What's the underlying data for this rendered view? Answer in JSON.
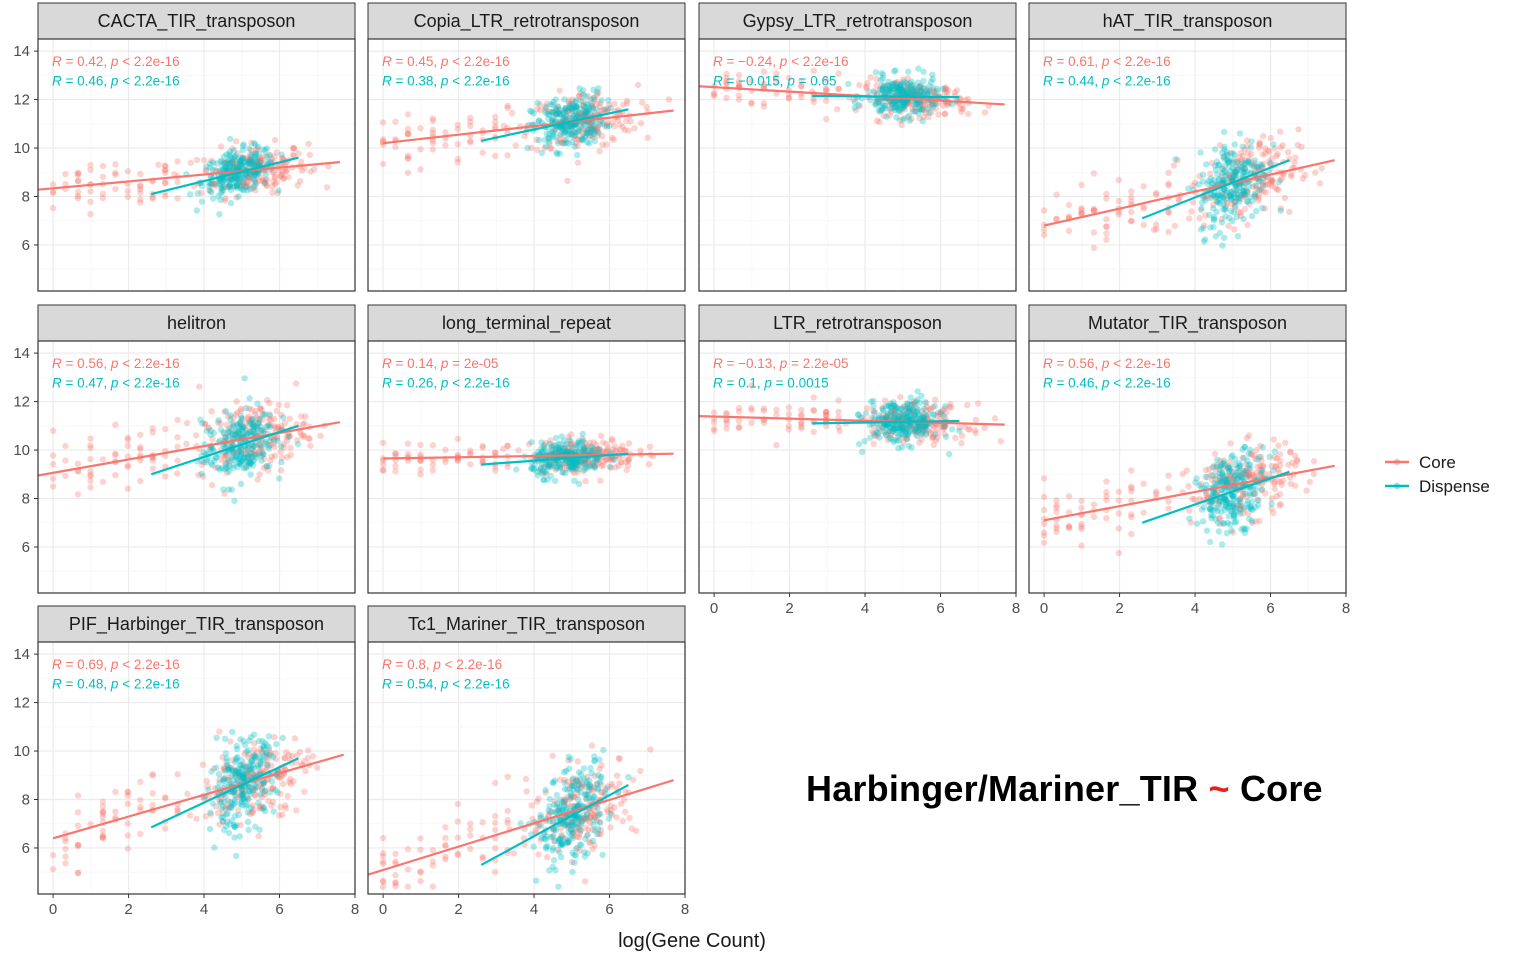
{
  "chart_data": {
    "type": "scatter",
    "xlabel": "log(Gene Count)",
    "ylabel": "",
    "xlim": [
      -0.4,
      8
    ],
    "ylim": [
      4.1,
      14.5
    ],
    "x_ticks": [
      0,
      2,
      4,
      6,
      8
    ],
    "y_ticks": [
      6,
      8,
      10,
      12,
      14
    ],
    "grid": true,
    "legend_position": "right",
    "legend": [
      {
        "name": "Core",
        "color": "#F8766D"
      },
      {
        "name": "Dispense",
        "color": "#00BFC4"
      }
    ],
    "facets": [
      {
        "title": "CACTA_TIR_transposon",
        "series": [
          {
            "name": "Core",
            "R": "0.42",
            "p": "< 2.2e-16",
            "x_range": [
              -0.4,
              7.6
            ],
            "line": [
              [
                -0.4,
                8.28
              ],
              [
                7.6,
                9.42
              ]
            ],
            "center": [
              5.3,
              9.0
            ],
            "spread": [
              1.2,
              0.5
            ]
          },
          {
            "name": "Dispense",
            "R": "0.46",
            "p": "< 2.2e-16",
            "x_range": [
              2.6,
              6.5
            ],
            "line": [
              [
                2.6,
                8.1
              ],
              [
                6.5,
                9.6
              ]
            ],
            "center": [
              4.9,
              8.85
            ],
            "spread": [
              0.8,
              0.45
            ]
          }
        ]
      },
      {
        "title": "Copia_LTR_retrotransposon",
        "series": [
          {
            "name": "Core",
            "R": "0.45",
            "p": "< 2.2e-16",
            "x_range": [
              0,
              7.7
            ],
            "line": [
              [
                0,
                10.2
              ],
              [
                7.7,
                11.55
              ]
            ],
            "center": [
              5.3,
              11.1
            ],
            "spread": [
              1.2,
              0.6
            ]
          },
          {
            "name": "Dispense",
            "R": "0.38",
            "p": "< 2.2e-16",
            "x_range": [
              2.6,
              6.5
            ],
            "line": [
              [
                2.6,
                10.3
              ],
              [
                6.5,
                11.6
              ]
            ],
            "center": [
              4.9,
              10.9
            ],
            "spread": [
              0.8,
              0.55
            ]
          }
        ]
      },
      {
        "title": "Gypsy_LTR_retrotransposon",
        "series": [
          {
            "name": "Core",
            "R": "−0.24",
            "p": "< 2.2e-16",
            "x_range": [
              -0.4,
              7.7
            ],
            "line": [
              [
                -0.4,
                12.55
              ],
              [
                7.7,
                11.8
              ]
            ],
            "center": [
              5.3,
              12.1
            ],
            "spread": [
              1.2,
              0.35
            ]
          },
          {
            "name": "Dispense",
            "R": "−0.015",
            "p": "= 0.65",
            "x_range": [
              2.6,
              6.5
            ],
            "line": [
              [
                2.6,
                12.15
              ],
              [
                6.5,
                12.1
              ]
            ],
            "center": [
              5.0,
              12.1
            ],
            "spread": [
              0.8,
              0.4
            ]
          }
        ]
      },
      {
        "title": "hAT_TIR_transposon",
        "series": [
          {
            "name": "Core",
            "R": "0.61",
            "p": "< 2.2e-16",
            "x_range": [
              0,
              7.7
            ],
            "line": [
              [
                0,
                6.8
              ],
              [
                7.7,
                9.5
              ]
            ],
            "center": [
              5.3,
              8.6
            ],
            "spread": [
              1.2,
              0.8
            ]
          },
          {
            "name": "Dispense",
            "R": "0.44",
            "p": "< 2.2e-16",
            "x_range": [
              2.6,
              6.5
            ],
            "line": [
              [
                2.6,
                7.1
              ],
              [
                6.5,
                9.5
              ]
            ],
            "center": [
              5.0,
              8.2
            ],
            "spread": [
              0.75,
              0.9
            ]
          }
        ]
      },
      {
        "title": "helitron",
        "series": [
          {
            "name": "Core",
            "R": "0.56",
            "p": "< 2.2e-16",
            "x_range": [
              -0.4,
              7.6
            ],
            "line": [
              [
                -0.4,
                8.95
              ],
              [
                7.6,
                11.15
              ]
            ],
            "center": [
              5.3,
              10.4
            ],
            "spread": [
              1.2,
              0.7
            ]
          },
          {
            "name": "Dispense",
            "R": "0.47",
            "p": "< 2.2e-16",
            "x_range": [
              2.6,
              6.5
            ],
            "line": [
              [
                2.6,
                9.0
              ],
              [
                6.5,
                11.0
              ]
            ],
            "center": [
              4.9,
              10.1
            ],
            "spread": [
              0.8,
              0.75
            ]
          }
        ]
      },
      {
        "title": "long_terminal_repeat",
        "series": [
          {
            "name": "Core",
            "R": "0.14",
            "p": "= 2e-05",
            "x_range": [
              0,
              7.7
            ],
            "line": [
              [
                0,
                9.65
              ],
              [
                7.7,
                9.85
              ]
            ],
            "center": [
              5.3,
              9.75
            ],
            "spread": [
              1.2,
              0.35
            ]
          },
          {
            "name": "Dispense",
            "R": "0.26",
            "p": "< 2.2e-16",
            "x_range": [
              2.6,
              6.5
            ],
            "line": [
              [
                2.6,
                9.4
              ],
              [
                6.5,
                9.85
              ]
            ],
            "center": [
              4.9,
              9.7
            ],
            "spread": [
              0.8,
              0.35
            ]
          }
        ]
      },
      {
        "title": "LTR_retrotransposon",
        "series": [
          {
            "name": "Core",
            "R": "−0.13",
            "p": "= 2.2e-05",
            "x_range": [
              -0.4,
              7.7
            ],
            "line": [
              [
                -0.4,
                11.4
              ],
              [
                7.7,
                11.05
              ]
            ],
            "center": [
              5.3,
              11.2
            ],
            "spread": [
              1.2,
              0.4
            ]
          },
          {
            "name": "Dispense",
            "R": "0.1",
            "p": "= 0.0015",
            "x_range": [
              2.6,
              6.5
            ],
            "line": [
              [
                2.6,
                11.1
              ],
              [
                6.5,
                11.2
              ]
            ],
            "center": [
              5.0,
              11.15
            ],
            "spread": [
              0.8,
              0.45
            ]
          }
        ]
      },
      {
        "title": "Mutator_TIR_transposon",
        "series": [
          {
            "name": "Core",
            "R": "0.56",
            "p": "< 2.2e-16",
            "x_range": [
              0,
              7.7
            ],
            "line": [
              [
                0,
                7.1
              ],
              [
                7.7,
                9.35
              ]
            ],
            "center": [
              5.3,
              8.7
            ],
            "spread": [
              1.2,
              0.7
            ]
          },
          {
            "name": "Dispense",
            "R": "0.46",
            "p": "< 2.2e-16",
            "x_range": [
              2.6,
              6.5
            ],
            "line": [
              [
                2.6,
                7.0
              ],
              [
                6.5,
                9.1
              ]
            ],
            "center": [
              5.0,
              8.2
            ],
            "spread": [
              0.75,
              0.75
            ]
          }
        ]
      },
      {
        "title": "PIF_Harbinger_TIR_transposon",
        "series": [
          {
            "name": "Core",
            "R": "0.69",
            "p": "< 2.2e-16",
            "x_range": [
              0,
              7.7
            ],
            "line": [
              [
                0,
                6.4
              ],
              [
                7.7,
                9.85
              ]
            ],
            "center": [
              5.3,
              9.0
            ],
            "spread": [
              1.2,
              0.8
            ]
          },
          {
            "name": "Dispense",
            "R": "0.48",
            "p": "< 2.2e-16",
            "x_range": [
              2.6,
              6.5
            ],
            "line": [
              [
                2.6,
                6.85
              ],
              [
                6.5,
                9.7
              ]
            ],
            "center": [
              5.0,
              8.6
            ],
            "spread": [
              0.75,
              0.85
            ]
          }
        ]
      },
      {
        "title": "Tc1_Mariner_TIR_transposon",
        "series": [
          {
            "name": "Core",
            "R": "0.8",
            "p": "< 2.2e-16",
            "x_range": [
              -0.4,
              7.7
            ],
            "line": [
              [
                -0.4,
                4.9
              ],
              [
                7.7,
                8.8
              ]
            ],
            "center": [
              5.3,
              7.8
            ],
            "spread": [
              1.2,
              0.9
            ]
          },
          {
            "name": "Dispense",
            "R": "0.54",
            "p": "< 2.2e-16",
            "x_range": [
              2.6,
              6.5
            ],
            "line": [
              [
                2.6,
                5.3
              ],
              [
                6.5,
                8.6
              ]
            ],
            "center": [
              5.0,
              7.4
            ],
            "spread": [
              0.75,
              0.95
            ]
          }
        ]
      }
    ]
  },
  "annotation": {
    "left": "Harbinger/Mariner_TIR",
    "tilde": "~",
    "right": "Core"
  }
}
